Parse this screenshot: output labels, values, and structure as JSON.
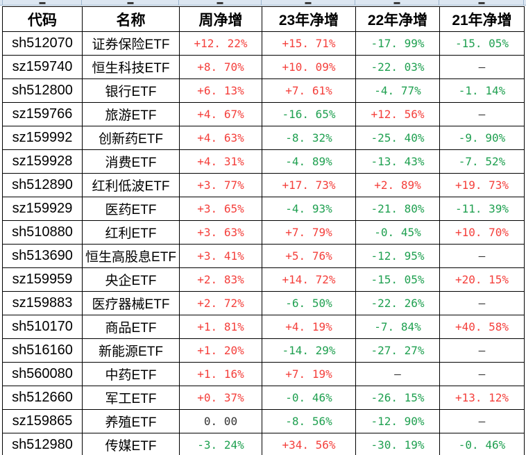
{
  "colors": {
    "positive": "#f43f3b",
    "negative": "#1fa050",
    "neutral": "#333333",
    "grid_border": "#000000",
    "strip_bg": "#dce6f1",
    "strip_line": "#9eb6ce"
  },
  "table": {
    "columns": [
      {
        "key": "code",
        "label": "代码"
      },
      {
        "key": "name",
        "label": "名称"
      },
      {
        "key": "week",
        "label": "周净增"
      },
      {
        "key": "y2023",
        "label": "23年净增"
      },
      {
        "key": "y2022",
        "label": "22年净增"
      },
      {
        "key": "y2021",
        "label": "21年净增"
      }
    ],
    "rows": [
      [
        "sh512070",
        "证券保险ETF",
        "+12.22%",
        "+15.71%",
        "-17.99%",
        "-15.05%"
      ],
      [
        "sz159740",
        "恒生科技ETF",
        "+8.70%",
        "+10.09%",
        "-22.03%",
        "—"
      ],
      [
        "sh512800",
        "银行ETF",
        "+6.13%",
        "+7.61%",
        "-4.77%",
        "-1.14%"
      ],
      [
        "sz159766",
        "旅游ETF",
        "+4.67%",
        "-16.65%",
        "+12.56%",
        "—"
      ],
      [
        "sz159992",
        "创新药ETF",
        "+4.63%",
        "-8.32%",
        "-25.40%",
        "-9.90%"
      ],
      [
        "sz159928",
        "消费ETF",
        "+4.31%",
        "-4.89%",
        "-13.43%",
        "-7.52%"
      ],
      [
        "sh512890",
        "红利低波ETF",
        "+3.77%",
        "+17.73%",
        "+2.89%",
        "+19.73%"
      ],
      [
        "sz159929",
        "医药ETF",
        "+3.65%",
        "-4.93%",
        "-21.80%",
        "-11.39%"
      ],
      [
        "sh510880",
        "红利ETF",
        "+3.63%",
        "+7.79%",
        "-0.45%",
        "+10.70%"
      ],
      [
        "sh513690",
        "恒生高股息ETF",
        "+3.41%",
        "+5.76%",
        "-12.95%",
        "—"
      ],
      [
        "sz159959",
        "央企ETF",
        "+2.83%",
        "+14.72%",
        "-15.05%",
        "+20.15%"
      ],
      [
        "sz159883",
        "医疗器械ETF",
        "+2.72%",
        "-6.50%",
        "-22.26%",
        "—"
      ],
      [
        "sh510170",
        "商品ETF",
        "+1.81%",
        "+4.19%",
        "-7.84%",
        "+40.58%"
      ],
      [
        "sh516160",
        "新能源ETF",
        "+1.20%",
        "-14.29%",
        "-27.27%",
        "—"
      ],
      [
        "sh560080",
        "中药ETF",
        "+1.16%",
        "+7.19%",
        "—",
        "—"
      ],
      [
        "sh512660",
        "军工ETF",
        "+0.37%",
        "-0.46%",
        "-26.15%",
        "+13.12%"
      ],
      [
        "sz159865",
        "养殖ETF",
        "0.00",
        "-8.56%",
        "-12.90%",
        "—"
      ],
      [
        "sh512980",
        "传媒ETF",
        "-3.24%",
        "+34.56%",
        "-30.19%",
        "-0.46%"
      ]
    ]
  }
}
